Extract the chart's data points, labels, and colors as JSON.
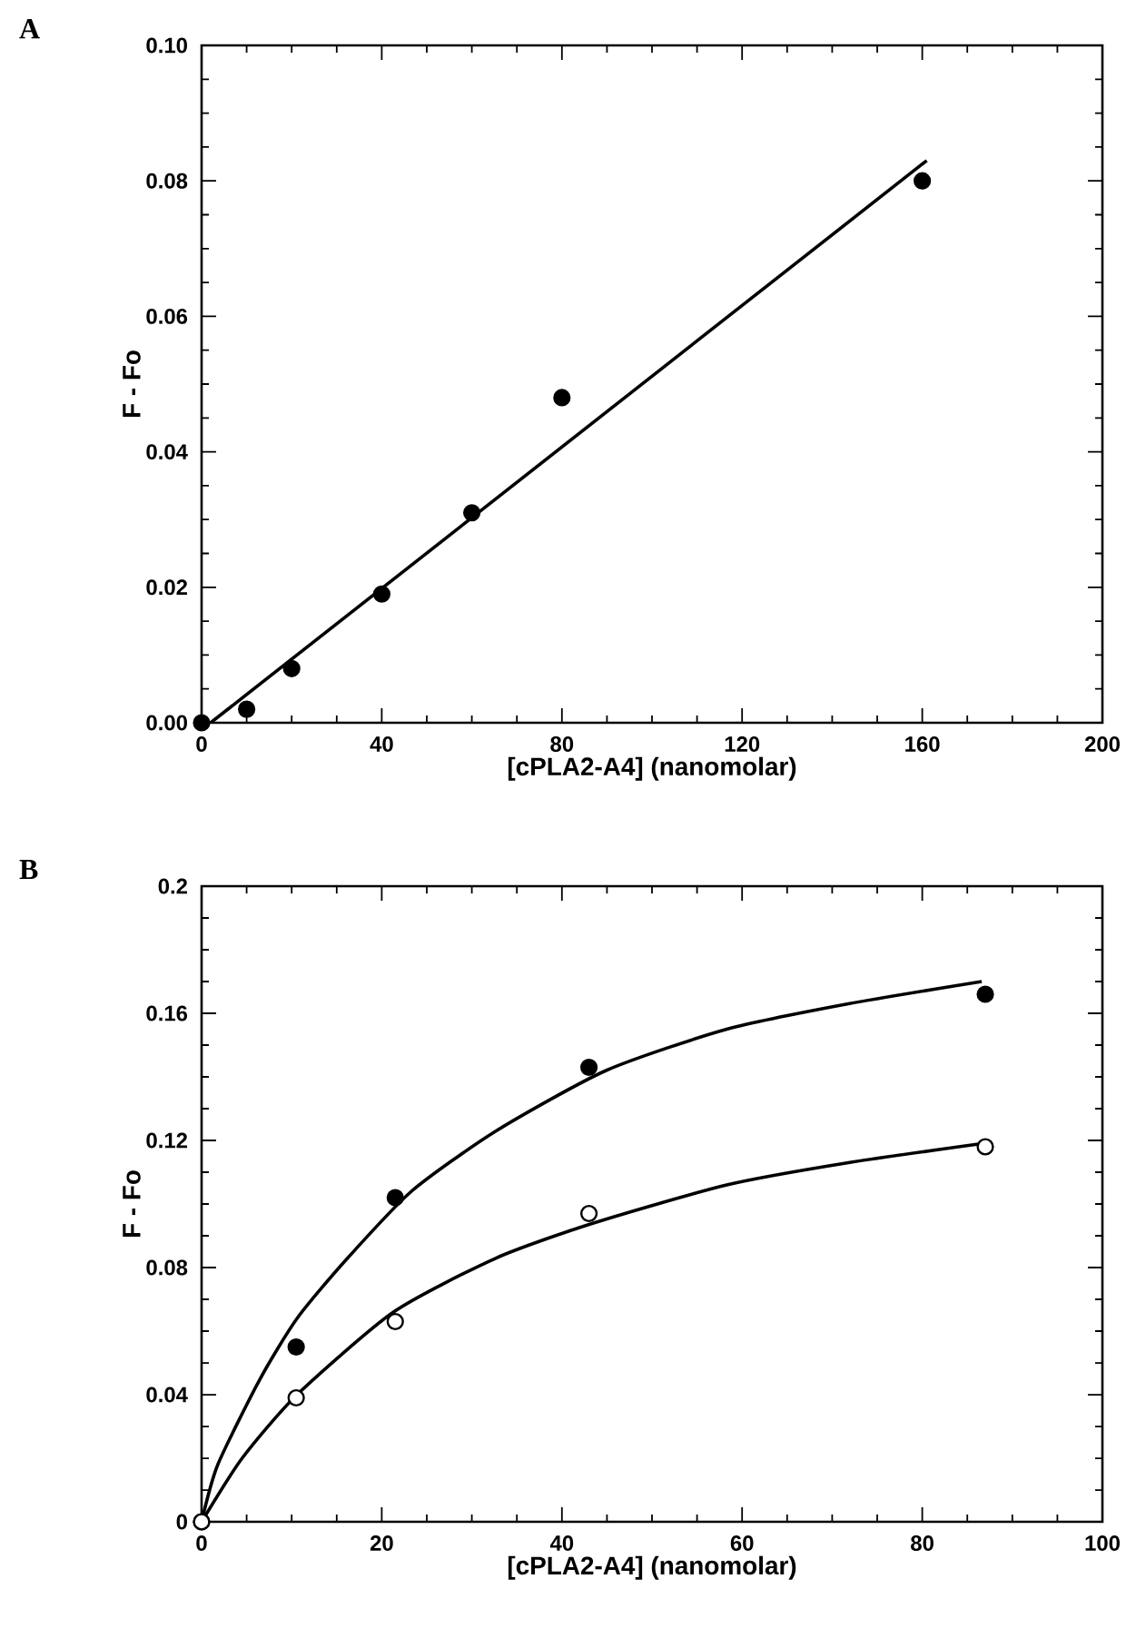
{
  "chart_data": [
    {
      "type": "scatter",
      "title": "A",
      "xlabel": "[cPLA2-A4] (nanomolar)",
      "ylabel": "F - Fo",
      "marker": "circle",
      "grid": false,
      "xlim": [
        0,
        200
      ],
      "xticks": [
        0,
        40,
        80,
        120,
        160,
        200
      ],
      "ylim": [
        0,
        0.1
      ],
      "yticks": [
        {
          "value": 0,
          "label": "0.00"
        },
        {
          "value": 0.02,
          "label": "0.02"
        },
        {
          "value": 0.04,
          "label": "0.04"
        },
        {
          "value": 0.06,
          "label": "0.06"
        },
        {
          "value": 0.08,
          "label": "0.08"
        },
        {
          "value": 0.1,
          "label": "0.10"
        }
      ],
      "series": [
        {
          "color": "#000000",
          "x": [
            0,
            10,
            20,
            40,
            60,
            80,
            160
          ],
          "values": [
            0,
            0.002,
            0.008,
            0.019,
            0.031,
            0.048,
            0.08
          ]
        },
        {
          "type": "line",
          "marker": "none",
          "line_style": "solid",
          "color": "#000000",
          "x": [
            2,
            161
          ],
          "values": [
            0,
            0.083
          ]
        }
      ]
    },
    {
      "type": "scatter",
      "title": "B",
      "xlabel": "[cPLA2-A4] (nanomolar)",
      "ylabel": "F - Fo",
      "marker": "circle",
      "grid": false,
      "xlim": [
        0,
        100
      ],
      "xticks": [
        0,
        20,
        40,
        60,
        80,
        100
      ],
      "ylim": [
        0,
        0.2
      ],
      "yticks": [
        0,
        0.04,
        0.08,
        0.12,
        0.16,
        0.2
      ],
      "series": [
        {
          "color": "#000000",
          "x": [
            0,
            10.5,
            21.5,
            43,
            87
          ],
          "values": [
            0,
            0.055,
            0.102,
            0.143,
            0.166
          ]
        },
        {
          "color": "#ffffff",
          "x": [
            0,
            10.5,
            21.5,
            43,
            87
          ],
          "values": [
            0,
            0.039,
            0.063,
            0.097,
            0.118
          ]
        },
        {
          "type": "line",
          "marker": "none",
          "line_style": "solid",
          "color": "#000000",
          "x": [
            0,
            1.8,
            6.5,
            10.6,
            15.9,
            23.3,
            32.7,
            44.9,
            58.3,
            71.8,
            86.6
          ],
          "values": [
            0,
            0.018,
            0.045,
            0.064,
            0.082,
            0.104,
            0.123,
            0.142,
            0.155,
            0.163,
            0.17
          ]
        },
        {
          "type": "line",
          "marker": "none",
          "line_style": "solid",
          "color": "#000000",
          "x": [
            0,
            4.5,
            10.6,
            21.3,
            32.7,
            43.5,
            58.3,
            71.8,
            86.6
          ],
          "values": [
            0,
            0.02,
            0.04,
            0.066,
            0.083,
            0.094,
            0.106,
            0.113,
            0.119
          ]
        }
      ]
    }
  ]
}
